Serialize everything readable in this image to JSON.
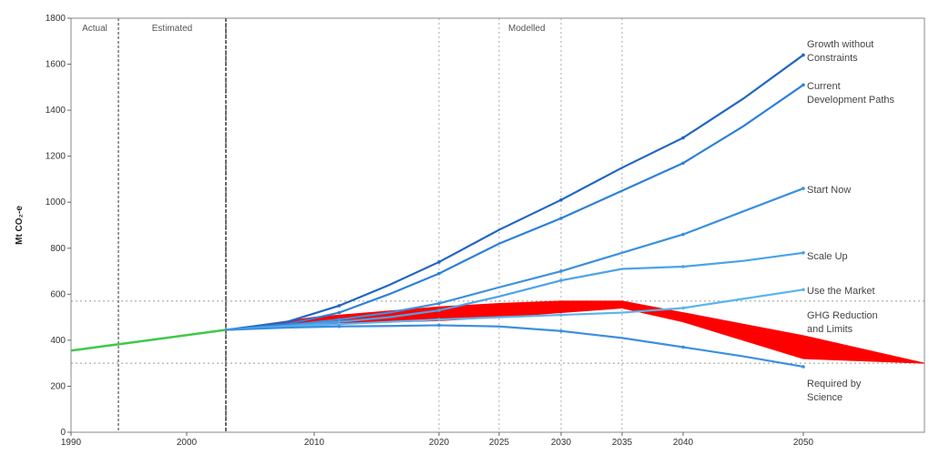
{
  "chart_data": {
    "type": "line",
    "ylabel": "Mt CO₂-e",
    "xlim": [
      1990,
      2050
    ],
    "ylim": [
      0,
      1800
    ],
    "y_ticks": [
      "0",
      "200",
      "400",
      "600",
      "800",
      "1000",
      "1200",
      "1400",
      "1600",
      "1800"
    ],
    "x_ticks": [
      1990,
      2000,
      2010,
      2020,
      2030,
      2040,
      2050
    ],
    "x_tick_labels": [
      "1990",
      "2000",
      "2010",
      "2020",
      "2025",
      "2030",
      "2035",
      "2040",
      "2050"
    ],
    "x_tick_values": [
      1990,
      2000,
      2010,
      2020,
      2025,
      2030,
      2035,
      2040,
      2050
    ],
    "region_labels": [
      "Actual",
      "Estimated",
      "Modelled"
    ],
    "region_boundaries": [
      1994.5,
      2003.5
    ],
    "vertical_gridlines": [
      2020,
      2025,
      2030,
      2035
    ],
    "horizontal_gridlines": [
      570,
      300
    ],
    "series": [
      {
        "name": "Growth without Constraints",
        "color": "#2166c4",
        "x": [
          2003.5,
          2008,
          2012,
          2016,
          2020,
          2025,
          2030,
          2035,
          2040,
          2045,
          2050
        ],
        "y": [
          445,
          480,
          550,
          640,
          740,
          880,
          1010,
          1150,
          1280,
          1450,
          1640
        ]
      },
      {
        "name": "Current Development Paths",
        "color": "#2e80d8",
        "x": [
          2003.5,
          2008,
          2012,
          2016,
          2020,
          2025,
          2030,
          2035,
          2040,
          2045,
          2050
        ],
        "y": [
          445,
          470,
          520,
          600,
          690,
          820,
          930,
          1050,
          1170,
          1330,
          1510
        ]
      },
      {
        "name": "Start Now",
        "color": "#3b90e0",
        "x": [
          2003.5,
          2008,
          2012,
          2016,
          2020,
          2025,
          2030,
          2035,
          2040,
          2045,
          2050
        ],
        "y": [
          445,
          465,
          490,
          520,
          560,
          630,
          700,
          780,
          860,
          960,
          1060
        ]
      },
      {
        "name": "Scale Up",
        "color": "#4aa3e8",
        "x": [
          2003.5,
          2008,
          2012,
          2016,
          2020,
          2025,
          2030,
          2035,
          2040,
          2045,
          2050
        ],
        "y": [
          445,
          462,
          480,
          500,
          530,
          590,
          660,
          710,
          720,
          745,
          780
        ]
      },
      {
        "name": "Use the Market",
        "color": "#5ab4ee",
        "x": [
          2003.5,
          2008,
          2012,
          2016,
          2020,
          2025,
          2030,
          2035,
          2040,
          2045,
          2050
        ],
        "y": [
          445,
          458,
          470,
          480,
          490,
          500,
          510,
          520,
          540,
          580,
          620
        ]
      },
      {
        "name": "Required by Science",
        "color": "#3d8fe0",
        "x": [
          2003.5,
          2008,
          2012,
          2016,
          2020,
          2025,
          2030,
          2035,
          2040,
          2045,
          2050
        ],
        "y": [
          445,
          455,
          460,
          462,
          465,
          460,
          440,
          410,
          370,
          330,
          285
        ]
      }
    ],
    "historical": {
      "color": "#3ec94a",
      "x": [
        1990,
        2003.5
      ],
      "y": [
        355,
        445
      ]
    },
    "band": {
      "name": "GHG Reduction and Limits",
      "color": "#ff0000",
      "x": [
        2003.5,
        2010,
        2020,
        2025,
        2030,
        2035,
        2040,
        2050,
        2055
      ],
      "upper": [
        445,
        500,
        545,
        560,
        570,
        570,
        520,
        420,
        300
      ],
      "lower": [
        445,
        470,
        485,
        500,
        520,
        540,
        480,
        320,
        300
      ]
    },
    "labels": [
      {
        "text": "Growth without",
        "series": "Growth without Constraints"
      },
      {
        "text": "Constraints",
        "series": "Growth without Constraints"
      },
      {
        "text": "Current",
        "series": "Current Development Paths"
      },
      {
        "text": "Development Paths",
        "series": "Current Development Paths"
      },
      {
        "text": "Start Now",
        "series": "Start Now"
      },
      {
        "text": "Scale Up",
        "series": "Scale Up"
      },
      {
        "text": "Use the Market",
        "series": "Use the Market"
      },
      {
        "text": "GHG Reduction",
        "series": "GHG Reduction and Limits",
        "color": "#ff2020"
      },
      {
        "text": "and Limits",
        "series": "GHG Reduction and Limits",
        "color": "#ff2020"
      },
      {
        "text": "Required by",
        "series": "Required by Science"
      },
      {
        "text": "Science",
        "series": "Required by Science"
      }
    ]
  }
}
